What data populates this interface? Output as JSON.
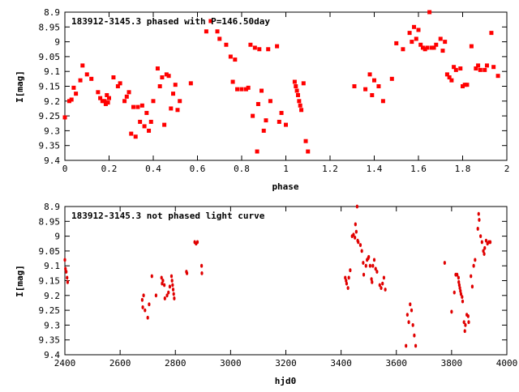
{
  "chart_data": [
    {
      "type": "scatter",
      "title": "183912-3145.3 phased with P=146.50day",
      "xlabel": "phase",
      "ylabel": "I[mag]",
      "xlim": [
        0,
        2
      ],
      "ylim": [
        9.4,
        8.9
      ],
      "y_inverted": true,
      "marker_color": "#ff0000",
      "x_ticks": [
        "0",
        "0.2",
        "0.4",
        "0.6",
        "0.8",
        "1",
        "1.2",
        "1.4",
        "1.6",
        "1.8",
        "2"
      ],
      "y_ticks": [
        "8.9",
        "8.95",
        "9",
        "9.05",
        "9.1",
        "9.15",
        "9.2",
        "9.25",
        "9.3",
        "9.35",
        "9.4"
      ],
      "points": [
        [
          0.0,
          9.255
        ],
        [
          0.02,
          9.2
        ],
        [
          0.03,
          9.195
        ],
        [
          0.04,
          9.155
        ],
        [
          0.05,
          9.175
        ],
        [
          0.07,
          9.13
        ],
        [
          0.08,
          9.08
        ],
        [
          0.1,
          9.11
        ],
        [
          0.12,
          9.125
        ],
        [
          0.15,
          9.17
        ],
        [
          0.16,
          9.19
        ],
        [
          0.17,
          9.2
        ],
        [
          0.18,
          9.2
        ],
        [
          0.185,
          9.21
        ],
        [
          0.19,
          9.18
        ],
        [
          0.195,
          9.205
        ],
        [
          0.2,
          9.19
        ],
        [
          0.22,
          9.12
        ],
        [
          0.24,
          9.15
        ],
        [
          0.25,
          9.14
        ],
        [
          0.27,
          9.2
        ],
        [
          0.28,
          9.185
        ],
        [
          0.29,
          9.17
        ],
        [
          0.3,
          9.31
        ],
        [
          0.31,
          9.22
        ],
        [
          0.32,
          9.32
        ],
        [
          0.33,
          9.22
        ],
        [
          0.34,
          9.27
        ],
        [
          0.35,
          9.215
        ],
        [
          0.36,
          9.285
        ],
        [
          0.37,
          9.24
        ],
        [
          0.38,
          9.3
        ],
        [
          0.39,
          9.27
        ],
        [
          0.4,
          9.2
        ],
        [
          0.42,
          9.09
        ],
        [
          0.43,
          9.15
        ],
        [
          0.44,
          9.12
        ],
        [
          0.45,
          9.28
        ],
        [
          0.46,
          9.11
        ],
        [
          0.47,
          9.115
        ],
        [
          0.48,
          9.225
        ],
        [
          0.49,
          9.175
        ],
        [
          0.5,
          9.145
        ],
        [
          0.51,
          9.23
        ],
        [
          0.52,
          9.2
        ],
        [
          0.57,
          9.14
        ],
        [
          0.64,
          8.965
        ],
        [
          0.66,
          8.93
        ],
        [
          0.69,
          8.965
        ],
        [
          0.7,
          8.99
        ],
        [
          0.73,
          9.01
        ],
        [
          0.75,
          9.05
        ],
        [
          0.76,
          9.135
        ],
        [
          0.77,
          9.06
        ],
        [
          0.78,
          9.16
        ],
        [
          0.8,
          9.16
        ],
        [
          0.82,
          9.16
        ],
        [
          0.83,
          9.155
        ],
        [
          0.84,
          9.01
        ],
        [
          0.85,
          9.25
        ],
        [
          0.86,
          9.02
        ],
        [
          0.87,
          9.37
        ],
        [
          0.875,
          9.21
        ],
        [
          0.88,
          9.025
        ],
        [
          0.89,
          9.165
        ],
        [
          0.9,
          9.3
        ],
        [
          0.91,
          9.265
        ],
        [
          0.92,
          9.025
        ],
        [
          0.93,
          9.2
        ],
        [
          0.96,
          9.015
        ],
        [
          0.97,
          9.27
        ],
        [
          0.98,
          9.24
        ],
        [
          1.0,
          9.28
        ],
        [
          1.04,
          9.135
        ],
        [
          1.045,
          9.15
        ],
        [
          1.05,
          9.165
        ],
        [
          1.055,
          9.18
        ],
        [
          1.06,
          9.2
        ],
        [
          1.065,
          9.215
        ],
        [
          1.07,
          9.23
        ],
        [
          1.08,
          9.14
        ],
        [
          1.09,
          9.335
        ],
        [
          1.1,
          9.37
        ],
        [
          1.31,
          9.15
        ],
        [
          1.36,
          9.16
        ],
        [
          1.38,
          9.11
        ],
        [
          1.39,
          9.18
        ],
        [
          1.4,
          9.13
        ],
        [
          1.42,
          9.15
        ],
        [
          1.44,
          9.2
        ],
        [
          1.48,
          9.125
        ],
        [
          1.5,
          9.005
        ],
        [
          1.53,
          9.025
        ],
        [
          1.56,
          8.97
        ],
        [
          1.57,
          9.0
        ],
        [
          1.58,
          8.95
        ],
        [
          1.59,
          8.99
        ],
        [
          1.6,
          8.96
        ],
        [
          1.61,
          9.01
        ],
        [
          1.62,
          9.02
        ],
        [
          1.63,
          9.025
        ],
        [
          1.64,
          9.02
        ],
        [
          1.65,
          8.9
        ],
        [
          1.66,
          9.02
        ],
        [
          1.67,
          9.02
        ],
        [
          1.68,
          9.01
        ],
        [
          1.7,
          8.99
        ],
        [
          1.71,
          9.03
        ],
        [
          1.72,
          9.0
        ],
        [
          1.73,
          9.11
        ],
        [
          1.74,
          9.12
        ],
        [
          1.75,
          9.13
        ],
        [
          1.76,
          9.085
        ],
        [
          1.77,
          9.095
        ],
        [
          1.79,
          9.09
        ],
        [
          1.8,
          9.15
        ],
        [
          1.81,
          9.145
        ],
        [
          1.82,
          9.145
        ],
        [
          1.84,
          9.015
        ],
        [
          1.86,
          9.09
        ],
        [
          1.87,
          9.08
        ],
        [
          1.88,
          9.095
        ],
        [
          1.9,
          9.095
        ],
        [
          1.91,
          9.08
        ],
        [
          1.93,
          8.97
        ],
        [
          1.94,
          9.085
        ],
        [
          1.96,
          9.115
        ]
      ]
    },
    {
      "type": "scatter",
      "title": "183912-3145.3 not phased light curve",
      "xlabel": "hjd0",
      "ylabel": "I[mag]",
      "xlim": [
        2400,
        4000
      ],
      "ylim": [
        9.4,
        8.9
      ],
      "y_inverted": true,
      "marker_color": "#e00000",
      "x_ticks": [
        "2400",
        "2600",
        "2800",
        "3000",
        "3200",
        "3400",
        "3600",
        "3800",
        "4000"
      ],
      "y_ticks": [
        "8.9",
        "8.95",
        "9",
        "9.05",
        "9.1",
        "9.15",
        "9.2",
        "9.25",
        "9.3",
        "9.35",
        "9.4"
      ],
      "points": [
        [
          2400,
          9.08
        ],
        [
          2402,
          9.11
        ],
        [
          2405,
          9.12
        ],
        [
          2408,
          9.14
        ],
        [
          2410,
          9.155
        ],
        [
          2680,
          9.215
        ],
        [
          2682,
          9.24
        ],
        [
          2685,
          9.2
        ],
        [
          2690,
          9.25
        ],
        [
          2700,
          9.275
        ],
        [
          2705,
          9.23
        ],
        [
          2715,
          9.135
        ],
        [
          2730,
          9.2
        ],
        [
          2750,
          9.14
        ],
        [
          2752,
          9.16
        ],
        [
          2755,
          9.15
        ],
        [
          2760,
          9.165
        ],
        [
          2762,
          9.21
        ],
        [
          2770,
          9.2
        ],
        [
          2775,
          9.19
        ],
        [
          2780,
          9.17
        ],
        [
          2786,
          9.135
        ],
        [
          2788,
          9.15
        ],
        [
          2790,
          9.165
        ],
        [
          2792,
          9.18
        ],
        [
          2794,
          9.195
        ],
        [
          2796,
          9.21
        ],
        [
          2840,
          9.12
        ],
        [
          2842,
          9.125
        ],
        [
          2870,
          9.02
        ],
        [
          2875,
          9.025
        ],
        [
          2880,
          9.02
        ],
        [
          2895,
          9.1
        ],
        [
          2896,
          9.125
        ],
        [
          3415,
          9.14
        ],
        [
          3418,
          9.15
        ],
        [
          3420,
          9.16
        ],
        [
          3425,
          9.175
        ],
        [
          3428,
          9.14
        ],
        [
          3433,
          9.115
        ],
        [
          3440,
          9.0
        ],
        [
          3445,
          8.995
        ],
        [
          3450,
          9.005
        ],
        [
          3452,
          8.96
        ],
        [
          3455,
          8.985
        ],
        [
          3458,
          8.9
        ],
        [
          3460,
          9.015
        ],
        [
          3462,
          9.02
        ],
        [
          3470,
          9.03
        ],
        [
          3475,
          9.05
        ],
        [
          3480,
          9.09
        ],
        [
          3482,
          9.13
        ],
        [
          3490,
          9.1
        ],
        [
          3494,
          9.08
        ],
        [
          3498,
          9.075
        ],
        [
          3500,
          9.07
        ],
        [
          3505,
          9.1
        ],
        [
          3510,
          9.145
        ],
        [
          3512,
          9.155
        ],
        [
          3515,
          9.1
        ],
        [
          3520,
          9.08
        ],
        [
          3525,
          9.11
        ],
        [
          3530,
          9.12
        ],
        [
          3540,
          9.165
        ],
        [
          3545,
          9.175
        ],
        [
          3550,
          9.16
        ],
        [
          3555,
          9.14
        ],
        [
          3560,
          9.18
        ],
        [
          3635,
          9.37
        ],
        [
          3640,
          9.265
        ],
        [
          3645,
          9.29
        ],
        [
          3650,
          9.23
        ],
        [
          3655,
          9.25
        ],
        [
          3660,
          9.3
        ],
        [
          3665,
          9.335
        ],
        [
          3670,
          9.37
        ],
        [
          3775,
          9.09
        ],
        [
          3800,
          9.255
        ],
        [
          3810,
          9.19
        ],
        [
          3815,
          9.13
        ],
        [
          3820,
          9.13
        ],
        [
          3825,
          9.14
        ],
        [
          3826,
          9.155
        ],
        [
          3828,
          9.165
        ],
        [
          3830,
          9.175
        ],
        [
          3832,
          9.185
        ],
        [
          3834,
          9.195
        ],
        [
          3838,
          9.205
        ],
        [
          3840,
          9.22
        ],
        [
          3845,
          9.29
        ],
        [
          3848,
          9.32
        ],
        [
          3850,
          9.3
        ],
        [
          3855,
          9.265
        ],
        [
          3860,
          9.27
        ],
        [
          3862,
          9.29
        ],
        [
          3870,
          9.135
        ],
        [
          3875,
          9.17
        ],
        [
          3880,
          9.1
        ],
        [
          3885,
          9.08
        ],
        [
          3895,
          8.975
        ],
        [
          3898,
          8.925
        ],
        [
          3900,
          8.945
        ],
        [
          3905,
          9.0
        ],
        [
          3910,
          9.02
        ],
        [
          3915,
          9.05
        ],
        [
          3918,
          9.06
        ],
        [
          3920,
          9.04
        ],
        [
          3925,
          9.015
        ],
        [
          3930,
          9.025
        ],
        [
          3935,
          9.02
        ],
        [
          3940,
          9.02
        ]
      ]
    }
  ]
}
